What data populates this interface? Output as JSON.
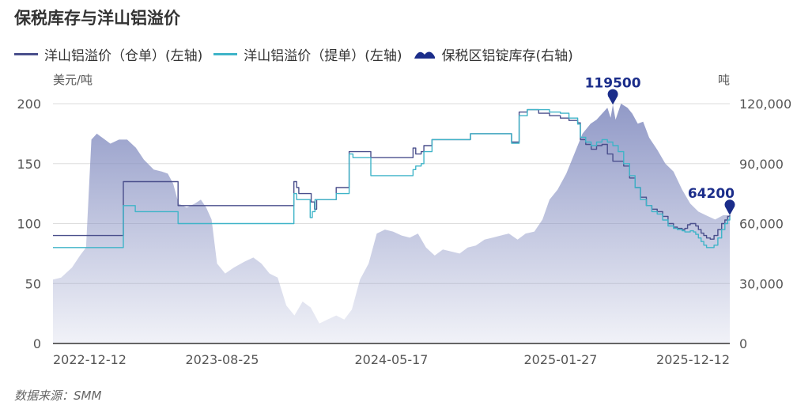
{
  "title": "保税库存与洋山铝溢价",
  "source": "数据来源：SMM",
  "colors": {
    "series1": "#4a4f8c",
    "series2": "#3fb4c8",
    "area": "#8b94c4",
    "axis": "#333333",
    "grid": "#dddddd",
    "marker": "#1b2d8a"
  },
  "chart_data": {
    "type": "line",
    "left_axis": {
      "label": "美元/吨",
      "min": 0,
      "max": 200,
      "ticks": [
        "0",
        "50",
        "100",
        "150",
        "200"
      ]
    },
    "right_axis": {
      "label": "吨",
      "min": 0,
      "max": 120000,
      "ticks": [
        "0",
        "30,000",
        "60,000",
        "90,000",
        "120,000"
      ]
    },
    "x_ticks": [
      "2022-12-12",
      "2023-08-25",
      "2024-05-17",
      "2025-01-27",
      "2025-12-12"
    ],
    "grid": true,
    "legend_position": "top-left",
    "series": [
      {
        "name": "洋山铝溢价（仓单）(左轴)",
        "kind": "line",
        "axis": "left",
        "color_key": "series1",
        "points": [
          [
            "2022-09-05",
            90
          ],
          [
            "2022-12-12",
            90
          ],
          [
            "2023-01-10",
            90
          ],
          [
            "2023-01-13",
            135
          ],
          [
            "2023-03-05",
            135
          ],
          [
            "2023-04-20",
            135
          ],
          [
            "2023-04-24",
            115
          ],
          [
            "2023-08-25",
            115
          ],
          [
            "2023-11-20",
            115
          ],
          [
            "2023-11-24",
            135
          ],
          [
            "2023-11-29",
            130
          ],
          [
            "2023-12-03",
            125
          ],
          [
            "2023-12-20",
            125
          ],
          [
            "2023-12-26",
            118
          ],
          [
            "2024-01-01",
            112
          ],
          [
            "2024-01-05",
            120
          ],
          [
            "2024-02-05",
            120
          ],
          [
            "2024-02-10",
            130
          ],
          [
            "2024-03-01",
            130
          ],
          [
            "2024-03-05",
            160
          ],
          [
            "2024-04-10",
            160
          ],
          [
            "2024-04-14",
            155
          ],
          [
            "2024-06-25",
            155
          ],
          [
            "2024-07-01",
            163
          ],
          [
            "2024-07-06",
            158
          ],
          [
            "2024-07-16",
            160
          ],
          [
            "2024-07-21",
            165
          ],
          [
            "2024-08-05",
            170
          ],
          [
            "2024-10-10",
            170
          ],
          [
            "2024-10-15",
            175
          ],
          [
            "2024-12-25",
            175
          ],
          [
            "2024-12-30",
            168
          ],
          [
            "2025-01-08",
            168
          ],
          [
            "2025-01-13",
            193
          ],
          [
            "2025-01-28",
            195
          ],
          [
            "2025-02-18",
            192
          ],
          [
            "2025-03-10",
            190
          ],
          [
            "2025-03-30",
            188
          ],
          [
            "2025-04-15",
            186
          ],
          [
            "2025-05-01",
            184
          ],
          [
            "2025-05-06",
            170
          ],
          [
            "2025-05-16",
            166
          ],
          [
            "2025-05-26",
            162
          ],
          [
            "2025-06-05",
            165
          ],
          [
            "2025-06-15",
            166
          ],
          [
            "2025-06-25",
            158
          ],
          [
            "2025-07-05",
            152
          ],
          [
            "2025-07-25",
            148
          ],
          [
            "2025-08-05",
            138
          ],
          [
            "2025-08-15",
            130
          ],
          [
            "2025-08-25",
            122
          ],
          [
            "2025-09-05",
            115
          ],
          [
            "2025-09-15",
            112
          ],
          [
            "2025-09-25",
            110
          ],
          [
            "2025-10-05",
            106
          ],
          [
            "2025-10-15",
            100
          ],
          [
            "2025-10-25",
            97
          ],
          [
            "2025-11-01",
            96
          ],
          [
            "2025-11-10",
            95
          ],
          [
            "2025-11-15",
            96
          ],
          [
            "2025-11-20",
            99
          ],
          [
            "2025-11-25",
            100
          ],
          [
            "2025-12-01",
            100
          ],
          [
            "2025-12-05",
            98
          ],
          [
            "2025-12-10",
            95
          ],
          [
            "2025-12-15",
            92
          ],
          [
            "2025-12-20",
            90
          ],
          [
            "2025-12-25",
            88
          ],
          [
            "2026-01-01",
            87
          ],
          [
            "2026-01-08",
            90
          ],
          [
            "2026-01-15",
            95
          ],
          [
            "2026-01-22",
            100
          ],
          [
            "2026-01-28",
            103
          ],
          [
            "2026-02-02",
            106
          ],
          [
            "2026-02-06",
            107
          ]
        ]
      },
      {
        "name": "洋山铝溢价（提单）(左轴)",
        "kind": "line",
        "axis": "left",
        "color_key": "series2",
        "points": [
          [
            "2022-09-05",
            80
          ],
          [
            "2022-12-12",
            80
          ],
          [
            "2023-01-10",
            80
          ],
          [
            "2023-01-13",
            115
          ],
          [
            "2023-01-16",
            115
          ],
          [
            "2023-01-18",
            115
          ],
          [
            "2023-01-20",
            115
          ],
          [
            "2023-01-22",
            115
          ],
          [
            "2023-01-24",
            115
          ],
          [
            "2023-01-25",
            115
          ],
          [
            "2023-01-27",
            115
          ],
          [
            "2023-01-28",
            115
          ],
          [
            "2023-01-30",
            115
          ],
          [
            "2023-02-01",
            115
          ],
          [
            "2023-02-02",
            115
          ],
          [
            "2023-02-04",
            110
          ],
          [
            "2023-02-10",
            110
          ],
          [
            "2023-03-05",
            110
          ],
          [
            "2023-04-20",
            110
          ],
          [
            "2023-04-24",
            100
          ],
          [
            "2023-08-25",
            100
          ],
          [
            "2023-11-20",
            100
          ],
          [
            "2023-11-24",
            125
          ],
          [
            "2023-11-29",
            120
          ],
          [
            "2023-12-03",
            120
          ],
          [
            "2023-12-20",
            120
          ],
          [
            "2023-12-24",
            105
          ],
          [
            "2023-12-28",
            110
          ],
          [
            "2024-01-02",
            120
          ],
          [
            "2024-01-07",
            120
          ],
          [
            "2024-02-05",
            120
          ],
          [
            "2024-02-10",
            125
          ],
          [
            "2024-03-01",
            125
          ],
          [
            "2024-03-05",
            158
          ],
          [
            "2024-03-12",
            155
          ],
          [
            "2024-04-10",
            155
          ],
          [
            "2024-04-14",
            140
          ],
          [
            "2024-06-25",
            140
          ],
          [
            "2024-07-01",
            145
          ],
          [
            "2024-07-06",
            148
          ],
          [
            "2024-07-16",
            150
          ],
          [
            "2024-07-21",
            160
          ],
          [
            "2024-08-05",
            170
          ],
          [
            "2024-10-10",
            170
          ],
          [
            "2024-10-15",
            175
          ],
          [
            "2024-12-25",
            175
          ],
          [
            "2024-12-30",
            167
          ],
          [
            "2025-01-08",
            167
          ],
          [
            "2025-01-13",
            190
          ],
          [
            "2025-01-28",
            195
          ],
          [
            "2025-02-18",
            195
          ],
          [
            "2025-03-10",
            193
          ],
          [
            "2025-03-30",
            192
          ],
          [
            "2025-04-15",
            188
          ],
          [
            "2025-05-01",
            183
          ],
          [
            "2025-05-06",
            172
          ],
          [
            "2025-05-16",
            168
          ],
          [
            "2025-05-26",
            165
          ],
          [
            "2025-06-05",
            168
          ],
          [
            "2025-06-15",
            170
          ],
          [
            "2025-06-25",
            168
          ],
          [
            "2025-07-05",
            165
          ],
          [
            "2025-07-15",
            160
          ],
          [
            "2025-07-25",
            150
          ],
          [
            "2025-08-05",
            140
          ],
          [
            "2025-08-15",
            130
          ],
          [
            "2025-08-25",
            120
          ],
          [
            "2025-09-05",
            115
          ],
          [
            "2025-09-15",
            110
          ],
          [
            "2025-09-25",
            108
          ],
          [
            "2025-10-05",
            103
          ],
          [
            "2025-10-15",
            98
          ],
          [
            "2025-10-25",
            96
          ],
          [
            "2025-11-01",
            95
          ],
          [
            "2025-11-10",
            94
          ],
          [
            "2025-11-15",
            93
          ],
          [
            "2025-11-20",
            93
          ],
          [
            "2025-11-25",
            94
          ],
          [
            "2025-12-01",
            93
          ],
          [
            "2025-12-05",
            91
          ],
          [
            "2025-12-10",
            88
          ],
          [
            "2025-12-15",
            85
          ],
          [
            "2025-12-20",
            82
          ],
          [
            "2025-12-25",
            80
          ],
          [
            "2026-01-01",
            80
          ],
          [
            "2026-01-08",
            82
          ],
          [
            "2026-01-15",
            88
          ],
          [
            "2026-01-22",
            95
          ],
          [
            "2026-01-28",
            100
          ],
          [
            "2026-02-02",
            103
          ],
          [
            "2026-02-06",
            106
          ]
        ]
      },
      {
        "name": "保税区铝锭库存(右轴)",
        "kind": "area",
        "axis": "right",
        "color_key": "area",
        "points": [
          [
            "2022-09-05",
            32000
          ],
          [
            "2022-09-20",
            33000
          ],
          [
            "2022-10-10",
            38000
          ],
          [
            "2022-10-25",
            44000
          ],
          [
            "2022-11-05",
            48000
          ],
          [
            "2022-11-15",
            102000
          ],
          [
            "2022-11-25",
            105000
          ],
          [
            "2022-12-05",
            103000
          ],
          [
            "2022-12-20",
            100000
          ],
          [
            "2023-01-05",
            102000
          ],
          [
            "2023-01-20",
            102000
          ],
          [
            "2023-02-05",
            98000
          ],
          [
            "2023-02-20",
            92000
          ],
          [
            "2023-03-10",
            87000
          ],
          [
            "2023-03-25",
            86000
          ],
          [
            "2023-04-05",
            85000
          ],
          [
            "2023-04-15",
            80000
          ],
          [
            "2023-04-25",
            70000
          ],
          [
            "2023-05-10",
            68000
          ],
          [
            "2023-05-25",
            70000
          ],
          [
            "2023-06-05",
            72000
          ],
          [
            "2023-06-15",
            68000
          ],
          [
            "2023-06-25",
            62000
          ],
          [
            "2023-07-05",
            40000
          ],
          [
            "2023-07-20",
            35000
          ],
          [
            "2023-08-05",
            38000
          ],
          [
            "2023-08-25",
            41000
          ],
          [
            "2023-09-10",
            43000
          ],
          [
            "2023-09-25",
            40000
          ],
          [
            "2023-10-10",
            35000
          ],
          [
            "2023-10-25",
            33000
          ],
          [
            "2023-11-10",
            19000
          ],
          [
            "2023-11-25",
            14000
          ],
          [
            "2023-12-10",
            21000
          ],
          [
            "2023-12-25",
            18000
          ],
          [
            "2024-01-10",
            10000
          ],
          [
            "2024-01-25",
            12000
          ],
          [
            "2024-02-10",
            14000
          ],
          [
            "2024-02-25",
            12000
          ],
          [
            "2024-03-10",
            17000
          ],
          [
            "2024-03-25",
            32000
          ],
          [
            "2024-04-10",
            40000
          ],
          [
            "2024-04-25",
            55000
          ],
          [
            "2024-05-10",
            57000
          ],
          [
            "2024-05-25",
            56000
          ],
          [
            "2024-06-10",
            54000
          ],
          [
            "2024-06-25",
            53000
          ],
          [
            "2024-07-10",
            55000
          ],
          [
            "2024-07-25",
            48000
          ],
          [
            "2024-08-10",
            44000
          ],
          [
            "2024-08-25",
            47000
          ],
          [
            "2024-09-10",
            46000
          ],
          [
            "2024-09-25",
            45000
          ],
          [
            "2024-10-10",
            48000
          ],
          [
            "2024-10-25",
            49000
          ],
          [
            "2024-11-10",
            52000
          ],
          [
            "2024-11-25",
            53000
          ],
          [
            "2024-12-10",
            54000
          ],
          [
            "2024-12-25",
            55000
          ],
          [
            "2025-01-10",
            52000
          ],
          [
            "2025-01-25",
            55000
          ],
          [
            "2025-02-10",
            56000
          ],
          [
            "2025-02-25",
            62000
          ],
          [
            "2025-03-10",
            72000
          ],
          [
            "2025-03-25",
            77000
          ],
          [
            "2025-04-10",
            85000
          ],
          [
            "2025-04-25",
            95000
          ],
          [
            "2025-05-10",
            105000
          ],
          [
            "2025-05-25",
            110000
          ],
          [
            "2025-06-05",
            112000
          ],
          [
            "2025-06-15",
            115000
          ],
          [
            "2025-06-25",
            118000
          ],
          [
            "2025-07-01",
            113000
          ],
          [
            "2025-07-05",
            119500
          ],
          [
            "2025-07-10",
            112000
          ],
          [
            "2025-07-20",
            120000
          ],
          [
            "2025-08-01",
            118000
          ],
          [
            "2025-08-10",
            115000
          ],
          [
            "2025-08-20",
            110000
          ],
          [
            "2025-08-30",
            111000
          ],
          [
            "2025-09-10",
            103000
          ],
          [
            "2025-09-25",
            97000
          ],
          [
            "2025-10-10",
            90000
          ],
          [
            "2025-10-25",
            86000
          ],
          [
            "2025-11-10",
            77000
          ],
          [
            "2025-11-25",
            70000
          ],
          [
            "2025-12-10",
            66000
          ],
          [
            "2025-12-25",
            64000
          ],
          [
            "2026-01-10",
            62000
          ],
          [
            "2026-01-25",
            64200
          ],
          [
            "2026-02-06",
            64200
          ]
        ]
      }
    ],
    "annotations": [
      {
        "label": "119500",
        "date": "2025-07-05",
        "value": 119500,
        "axis": "right"
      },
      {
        "label": "64200",
        "date": "2026-02-06",
        "value": 64200,
        "axis": "right"
      }
    ]
  }
}
